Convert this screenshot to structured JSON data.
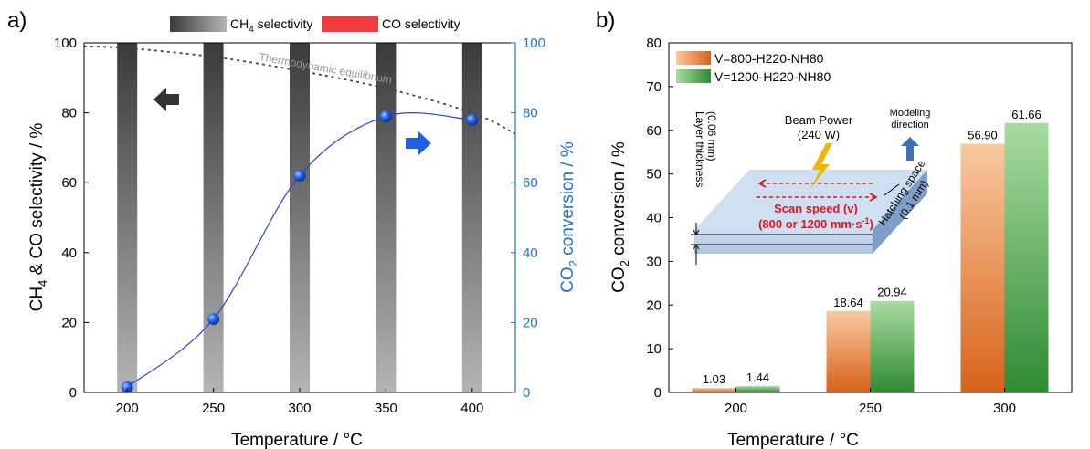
{
  "panels": {
    "a": "a)",
    "b": "b)"
  },
  "chart_data": [
    {
      "type": "bar",
      "panel": "a)",
      "legend": [
        {
          "label": "CH",
          "sub": "4",
          "suffix": " selectivity",
          "color": "#555555"
        },
        {
          "label": "CO selectivity",
          "color": "#f03c3c"
        }
      ],
      "x": [
        200,
        250,
        300,
        350,
        400
      ],
      "series": [
        {
          "name": "CH4 selectivity",
          "values": [
            100,
            100,
            100,
            100,
            100
          ]
        },
        {
          "name": "CO selectivity",
          "values": [
            0,
            0,
            0,
            0,
            0
          ]
        }
      ],
      "conversion": [
        1.5,
        21,
        62,
        79,
        78
      ],
      "equilibrium_curve": {
        "label": "Thermodynamic equilibrium",
        "x": [
          175,
          200,
          250,
          300,
          350,
          400,
          425
        ],
        "y": [
          99,
          98.5,
          96,
          92,
          87,
          80,
          74
        ]
      },
      "xlabel": "Temperature / °C",
      "ylabel_left": {
        "pre": "CH",
        "sub1": "4",
        "mid": " & CO selectivity / %"
      },
      "ylabel_right": {
        "pre": "CO",
        "sub": "2",
        "post": " conversion / %"
      },
      "xlim": [
        175,
        425
      ],
      "ylim": [
        0,
        100
      ],
      "yticks": [
        0,
        20,
        40,
        60,
        80,
        100
      ],
      "xticks": [
        200,
        250,
        300,
        350,
        400
      ],
      "right_axis_color": "#1f6fe0"
    },
    {
      "type": "bar",
      "panel": "b)",
      "categories": [
        "200",
        "250",
        "300"
      ],
      "series": [
        {
          "name": "V=800-H220-NH80",
          "values": [
            1.03,
            18.64,
            56.9
          ],
          "labels": [
            "1.03",
            "18.64",
            "56.90"
          ],
          "color_top": "#f9c9a0",
          "color_bottom": "#d8621a"
        },
        {
          "name": "V=1200-H220-NH80",
          "values": [
            1.44,
            20.94,
            61.66
          ],
          "labels": [
            "1.44",
            "20.94",
            "61.66"
          ],
          "color_top": "#a9dca1",
          "color_bottom": "#2f8a32"
        }
      ],
      "xlabel": "Temperature / °C",
      "ylabel": {
        "pre": "CO",
        "sub": "2",
        "post": " conversion / %"
      },
      "ylim": [
        0,
        80
      ],
      "yticks": [
        0,
        10,
        20,
        30,
        40,
        50,
        60,
        70,
        80
      ],
      "inset": {
        "beam_power": "Beam Power",
        "beam_watts": "(240 W)",
        "modeling": "Modeling",
        "direction": "direction",
        "layer_thickness": "Layer thickness",
        "layer_value": "(0.06 mm)",
        "hatching": "Hatching space",
        "hatching_value": "(0.1 mm)",
        "scan_speed": "Scan speed (v)",
        "scan_values": "(800 or 1200 mm·s",
        "scan_sup": "-1",
        "scan_close": ")"
      }
    }
  ]
}
